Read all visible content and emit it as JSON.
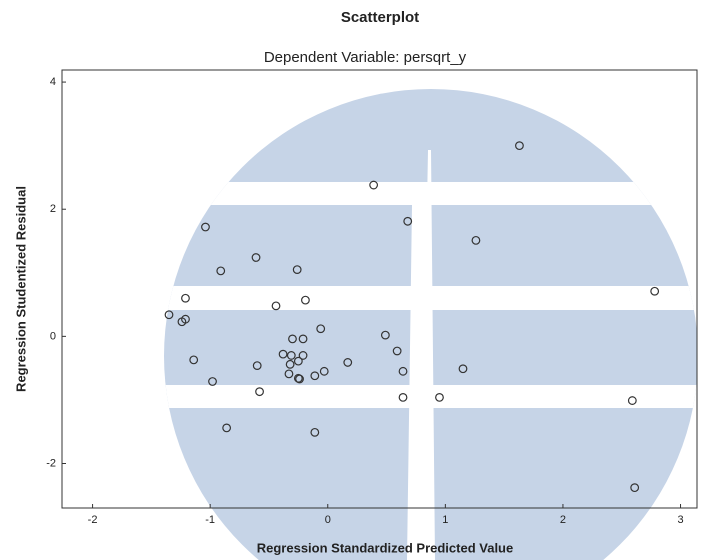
{
  "chart_data": {
    "type": "scatter",
    "title": "Scatterplot",
    "subtitle": "Dependent Variable: persqrt_y",
    "x_label": "Regression Standardized Predicted Value",
    "y_label": "Regression Studentized Residual",
    "x": [
      1.63,
      0.39,
      0.68,
      -1.04,
      1.26,
      -0.61,
      -0.91,
      -0.26,
      2.78,
      -1.21,
      -0.19,
      -0.44,
      -1.35,
      -1.24,
      -1.21,
      -0.06,
      0.49,
      -0.3,
      -0.21,
      -0.38,
      -0.31,
      -0.21,
      0.59,
      -1.14,
      -0.25,
      -0.32,
      0.17,
      -0.6,
      -0.33,
      -0.03,
      0.64,
      1.15,
      -0.11,
      -0.25,
      -0.24,
      -0.98,
      -0.58,
      0.64,
      0.95,
      2.59,
      -0.86,
      -0.11,
      2.61
    ],
    "values": [
      3.0,
      2.38,
      1.81,
      1.72,
      1.51,
      1.24,
      1.03,
      1.05,
      0.71,
      0.6,
      0.57,
      0.48,
      0.34,
      0.23,
      0.27,
      0.12,
      0.02,
      -0.04,
      -0.04,
      -0.28,
      -0.3,
      -0.3,
      -0.23,
      -0.37,
      -0.39,
      -0.44,
      -0.41,
      -0.46,
      -0.59,
      -0.55,
      -0.55,
      -0.51,
      -0.62,
      -0.66,
      -0.67,
      -0.71,
      -0.87,
      -0.96,
      -0.96,
      -1.01,
      -1.44,
      -1.51,
      -2.38
    ],
    "color": "#333333",
    "xlim": [
      -2.26,
      3.14
    ],
    "ylim": [
      -2.7,
      4.19
    ],
    "xticks": [
      -2,
      -1,
      0,
      1,
      2,
      3
    ],
    "yticks": [
      -2,
      0,
      2,
      4
    ],
    "grid": false
  }
}
